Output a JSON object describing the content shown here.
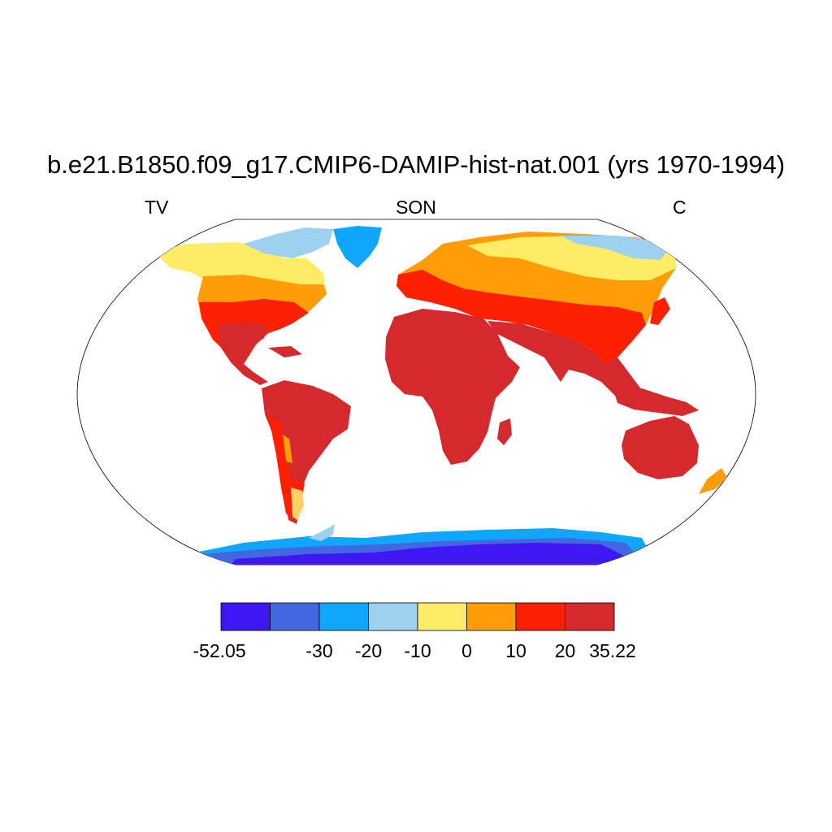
{
  "map": {
    "title": "b.e21.B1850.f09_g17.CMIP6-DAMIP-hist-nat.001 (yrs 1970-1994)",
    "variable": "TV",
    "season": "SON",
    "units": "C"
  },
  "colorbar": {
    "colors": [
      "#3f17f5",
      "#4267e0",
      "#10a7fb",
      "#9dd1ef",
      "#fded66",
      "#fe9d07",
      "#fd2003",
      "#d42a2d"
    ],
    "labels": [
      "-52.05",
      "-30",
      "-20",
      "-10",
      "0",
      "10",
      "20",
      "35.22"
    ]
  },
  "colors": {
    "ocean": "#ffffff",
    "coastline": "#000000"
  }
}
